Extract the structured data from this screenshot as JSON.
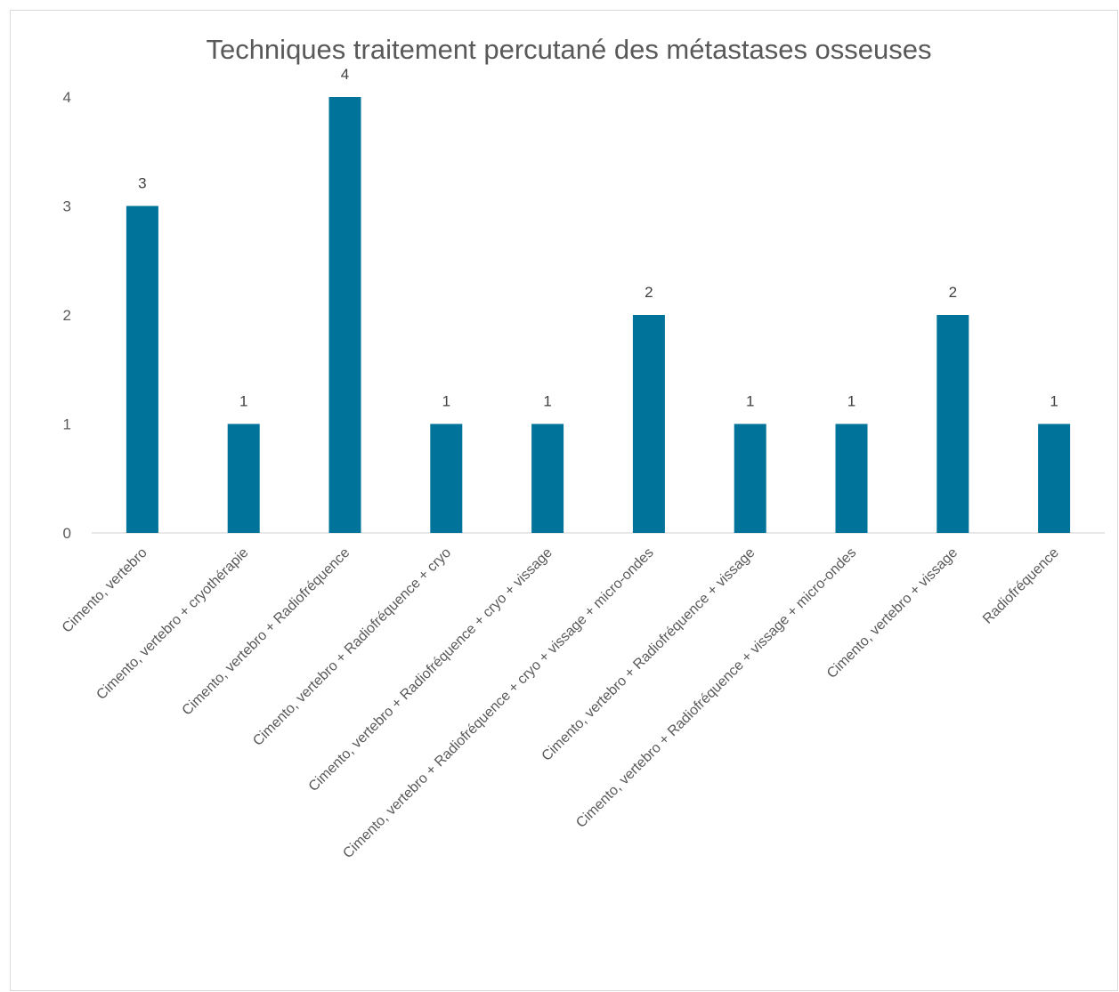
{
  "chart_data": {
    "type": "bar",
    "title": "Techniques traitement percutané des métastases osseuses",
    "categories": [
      "Cimento, vertebro",
      "Cimento, vertebro + cryothérapie",
      "Cimento, vertebro + Radiofréquence",
      "Cimento, vertebro + Radiofréquence  + cryo",
      "Cimento, vertebro + Radiofréquence + cryo + vissage",
      "Cimento, vertebro + Radiofréquence + cryo + vissage + micro-ondes",
      "Cimento, vertebro + Radiofréquence  + vissage",
      "Cimento, vertebro + Radiofréquence  + vissage + micro-ondes",
      "Cimento, vertebro + vissage",
      "Radiofréquence"
    ],
    "values": [
      3,
      1,
      4,
      1,
      1,
      2,
      1,
      1,
      2,
      1
    ],
    "y_ticks": [
      0,
      1,
      2,
      3,
      4
    ],
    "ylim": [
      0,
      4
    ],
    "grid": false,
    "data_labels": true,
    "bar_color": "#00739a"
  }
}
